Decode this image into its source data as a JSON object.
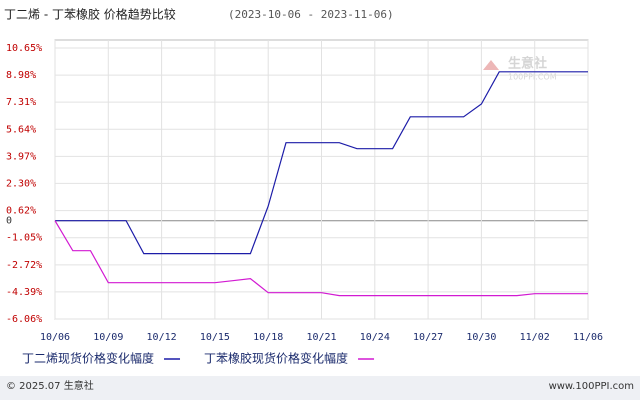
{
  "chart_data": {
    "type": "line",
    "title": "丁二烯 - 丁苯橡胶 价格趋势比较",
    "subtitle": "(2023-10-06 - 2023-11-06)",
    "categories": [
      "10/06",
      null,
      null,
      "10/09",
      null,
      null,
      "10/12",
      null,
      null,
      "10/15",
      null,
      null,
      "10/18",
      null,
      null,
      "10/21",
      null,
      null,
      "10/24",
      null,
      null,
      "10/27",
      null,
      null,
      "10/30",
      null,
      null,
      "11/02",
      null,
      null,
      "11/06"
    ],
    "series": [
      {
        "name": "丁二烯现货价格变化幅度",
        "color": "#1c1ca8",
        "values": [
          0,
          0,
          0,
          0,
          0,
          -2.03,
          -2.03,
          -2.03,
          -2.03,
          -2.03,
          -2.03,
          -2.03,
          0.9,
          4.81,
          4.81,
          4.81,
          4.81,
          4.44,
          4.44,
          4.44,
          6.41,
          6.41,
          6.41,
          6.41,
          7.2,
          9.18,
          9.18,
          9.18,
          9.18,
          9.18,
          9.18
        ]
      },
      {
        "name": "丁苯橡胶现货价格变化幅度",
        "color": "#d21ad2",
        "values": [
          0,
          -1.85,
          -1.85,
          -3.82,
          -3.82,
          -3.82,
          -3.82,
          -3.82,
          -3.82,
          -3.82,
          -3.7,
          -3.57,
          -4.44,
          -4.44,
          -4.44,
          -4.44,
          -4.62,
          -4.62,
          -4.62,
          -4.62,
          -4.62,
          -4.62,
          -4.62,
          -4.62,
          -4.62,
          -4.62,
          -4.62,
          -4.5,
          -4.5,
          -4.5,
          -4.5
        ]
      }
    ],
    "ylim": [
      -6.06,
      10.65
    ],
    "yticks": [
      {
        "value": 10.65,
        "label": "10.65%"
      },
      {
        "value": 8.98,
        "label": "8.98%"
      },
      {
        "value": 7.31,
        "label": "7.31%"
      },
      {
        "value": 5.64,
        "label": "5.64%"
      },
      {
        "value": 3.97,
        "label": "3.97%"
      },
      {
        "value": 2.3,
        "label": "2.30%"
      },
      {
        "value": 0.62,
        "label": "0.62%"
      },
      0,
      {
        "value": -1.05,
        "label": "-1.05%"
      },
      {
        "value": -2.72,
        "label": "-2.72%"
      },
      {
        "value": -4.39,
        "label": "-4.39%"
      },
      {
        "value": -6.06,
        "label": "-6.06%"
      }
    ],
    "grid": true,
    "legend": "bottom"
  },
  "watermark": {
    "name": "生意社",
    "site": "100PPI.COM"
  },
  "footer": {
    "left": "© 2025.07 生意社",
    "right": "www.100PPI.com"
  }
}
